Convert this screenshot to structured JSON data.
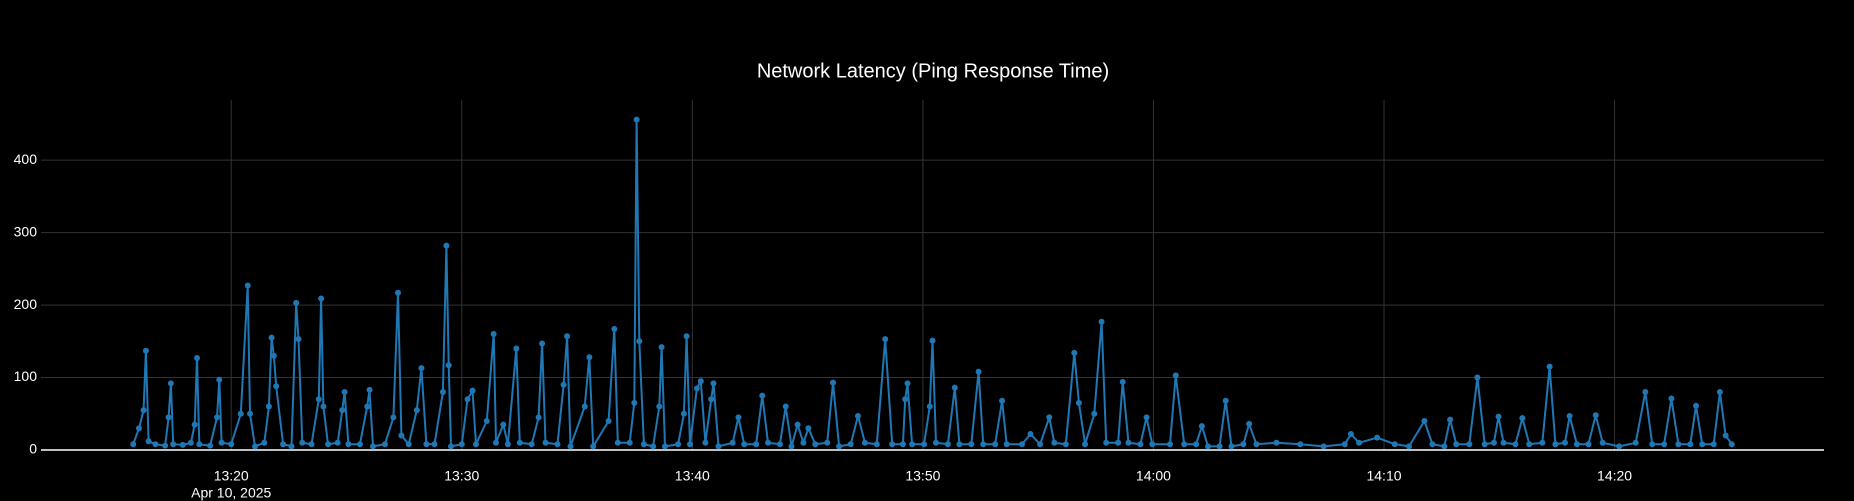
{
  "chart_data": {
    "type": "line",
    "title": "Network Latency (Ping Response Time)",
    "color": "#1f77b4",
    "grid": true,
    "x_date_label": "Apr 10, 2025",
    "xlim": [
      "13:11:45",
      "14:29:05"
    ],
    "xticks": [
      {
        "value": "13:20:00",
        "label": "13:20"
      },
      {
        "value": "13:30:00",
        "label": "13:30"
      },
      {
        "value": "13:40:00",
        "label": "13:40"
      },
      {
        "value": "13:50:00",
        "label": "13:50"
      },
      {
        "value": "14:00:00",
        "label": "14:00"
      },
      {
        "value": "14:10:00",
        "label": "14:10"
      },
      {
        "value": "14:20:00",
        "label": "14:20"
      }
    ],
    "ylim": [
      0,
      483
    ],
    "yticks": [
      0,
      100,
      200,
      300,
      400
    ],
    "x": [
      "13:15:45",
      "13:16:00",
      "13:16:12",
      "13:16:18",
      "13:16:25",
      "13:16:43",
      "13:17:08",
      "13:17:17",
      "13:17:23",
      "13:17:29",
      "13:17:54",
      "13:18:15",
      "13:18:25",
      "13:18:31",
      "13:18:37",
      "13:19:05",
      "13:19:23",
      "13:19:29",
      "13:19:35",
      "13:20:00",
      "13:20:25",
      "13:20:43",
      "13:20:49",
      "13:21:02",
      "13:21:26",
      "13:21:38",
      "13:21:45",
      "13:21:51",
      "13:21:57",
      "13:22:15",
      "13:22:37",
      "13:22:49",
      "13:22:55",
      "13:23:05",
      "13:23:29",
      "13:23:48",
      "13:23:54",
      "13:24:00",
      "13:24:12",
      "13:24:37",
      "13:24:49",
      "13:24:55",
      "13:25:05",
      "13:25:35",
      "13:25:54",
      "13:26:00",
      "13:26:09",
      "13:26:40",
      "13:27:02",
      "13:27:14",
      "13:27:23",
      "13:27:42",
      "13:28:03",
      "13:28:15",
      "13:28:28",
      "13:28:49",
      "13:29:11",
      "13:29:20",
      "13:29:26",
      "13:29:32",
      "13:30:00",
      "13:30:15",
      "13:30:28",
      "13:30:37",
      "13:31:05",
      "13:31:23",
      "13:31:29",
      "13:31:48",
      "13:32:00",
      "13:32:22",
      "13:32:31",
      "13:33:02",
      "13:33:20",
      "13:33:29",
      "13:33:38",
      "13:34:09",
      "13:34:25",
      "13:34:34",
      "13:34:43",
      "13:35:20",
      "13:35:32",
      "13:35:42",
      "13:36:22",
      "13:36:37",
      "13:36:46",
      "13:37:17",
      "13:37:29",
      "13:37:35",
      "13:37:42",
      "13:37:54",
      "13:38:18",
      "13:38:34",
      "13:38:40",
      "13:38:49",
      "13:39:23",
      "13:39:38",
      "13:39:45",
      "13:39:54",
      "13:40:12",
      "13:40:22",
      "13:40:34",
      "13:40:49",
      "13:40:55",
      "13:41:08",
      "13:41:45",
      "13:42:00",
      "13:42:15",
      "13:42:46",
      "13:43:02",
      "13:43:17",
      "13:43:48",
      "13:44:03",
      "13:44:18",
      "13:44:34",
      "13:44:49",
      "13:45:02",
      "13:45:20",
      "13:45:51",
      "13:46:06",
      "13:46:22",
      "13:46:52",
      "13:47:11",
      "13:47:29",
      "13:48:00",
      "13:48:22",
      "13:48:40",
      "13:49:08",
      "13:49:14",
      "13:49:20",
      "13:49:32",
      "13:50:03",
      "13:50:18",
      "13:50:25",
      "13:50:34",
      "13:51:05",
      "13:51:23",
      "13:51:35",
      "13:52:06",
      "13:52:25",
      "13:52:37",
      "13:53:08",
      "13:53:26",
      "13:53:38",
      "13:54:18",
      "13:54:40",
      "13:55:05",
      "13:55:29",
      "13:55:42",
      "13:56:12",
      "13:56:34",
      "13:56:46",
      "13:57:02",
      "13:57:26",
      "13:57:45",
      "13:57:57",
      "13:58:28",
      "13:58:40",
      "13:58:55",
      "13:59:26",
      "13:59:42",
      "13:59:57",
      "14:00:43",
      "14:00:58",
      "14:01:20",
      "14:01:51",
      "14:02:06",
      "14:02:22",
      "14:02:52",
      "14:03:08",
      "14:03:23",
      "14:03:54",
      "14:04:09",
      "14:04:28",
      "14:05:20",
      "14:06:22",
      "14:07:23",
      "14:08:18",
      "14:08:34",
      "14:08:55",
      "14:09:42",
      "14:10:28",
      "14:11:05",
      "14:11:45",
      "14:12:06",
      "14:12:37",
      "14:12:52",
      "14:13:08",
      "14:13:42",
      "14:14:03",
      "14:14:22",
      "14:14:46",
      "14:14:58",
      "14:15:11",
      "14:15:42",
      "14:16:00",
      "14:16:18",
      "14:16:52",
      "14:17:11",
      "14:17:26",
      "14:17:51",
      "14:18:03",
      "14:18:22",
      "14:18:52",
      "14:19:11",
      "14:19:29",
      "14:20:12",
      "14:20:55",
      "14:21:20",
      "14:21:38",
      "14:22:09",
      "14:22:28",
      "14:22:46",
      "14:23:17",
      "14:23:32",
      "14:23:48",
      "14:24:18",
      "14:24:34",
      "14:24:49",
      "14:25:05"
    ],
    "values": [
      8,
      30,
      55,
      137,
      12,
      8,
      6,
      45,
      92,
      8,
      7,
      10,
      35,
      127,
      8,
      6,
      45,
      97,
      10,
      8,
      50,
      227,
      50,
      5,
      10,
      60,
      155,
      130,
      88,
      8,
      5,
      203,
      153,
      10,
      8,
      70,
      209,
      60,
      8,
      10,
      55,
      80,
      8,
      8,
      60,
      83,
      5,
      8,
      45,
      217,
      20,
      8,
      55,
      113,
      8,
      8,
      80,
      282,
      117,
      5,
      8,
      70,
      82,
      8,
      40,
      160,
      10,
      35,
      8,
      140,
      10,
      8,
      45,
      147,
      10,
      8,
      90,
      157,
      5,
      60,
      128,
      5,
      40,
      167,
      10,
      10,
      65,
      456,
      150,
      8,
      5,
      60,
      142,
      5,
      8,
      50,
      157,
      8,
      85,
      95,
      10,
      70,
      92,
      5,
      10,
      45,
      8,
      8,
      75,
      10,
      8,
      60,
      5,
      35,
      10,
      30,
      8,
      10,
      93,
      5,
      8,
      47,
      10,
      8,
      153,
      8,
      8,
      70,
      92,
      8,
      8,
      60,
      151,
      10,
      8,
      86,
      8,
      8,
      108,
      8,
      8,
      68,
      8,
      8,
      22,
      8,
      45,
      10,
      8,
      134,
      65,
      8,
      50,
      177,
      10,
      10,
      94,
      10,
      8,
      45,
      8,
      8,
      103,
      8,
      8,
      33,
      5,
      5,
      68,
      5,
      8,
      36,
      8,
      10,
      8,
      5,
      8,
      22,
      10,
      17,
      8,
      5,
      40,
      8,
      5,
      42,
      8,
      8,
      100,
      8,
      10,
      46,
      10,
      8,
      44,
      8,
      10,
      115,
      8,
      10,
      47,
      8,
      8,
      48,
      10,
      5,
      10,
      80,
      8,
      8,
      71,
      8,
      8,
      61,
      8,
      8,
      80,
      20,
      8
    ]
  }
}
